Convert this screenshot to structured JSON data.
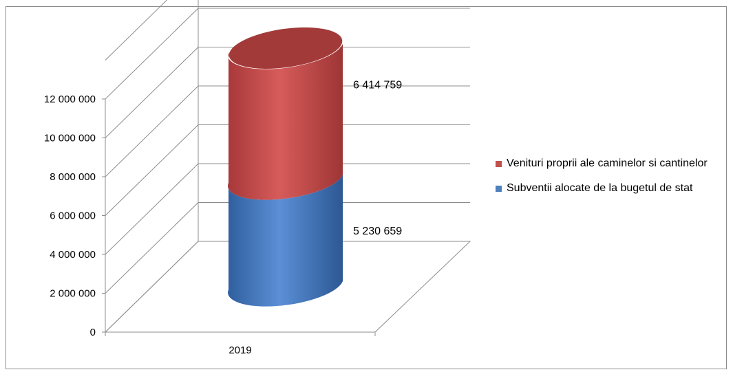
{
  "chart_data": {
    "type": "bar",
    "style": "3d-cylinder-stacked",
    "categories": [
      "2019"
    ],
    "series": [
      {
        "name": "Subventii alocate de la bugetul de stat",
        "values": [
          5230659
        ],
        "label": "5 230 659",
        "color": "#4f81bd"
      },
      {
        "name": "Venituri proprii ale caminelor si cantinelor",
        "values": [
          6414759
        ],
        "label": "6 414 759",
        "color": "#c0504d"
      }
    ],
    "ylim": [
      0,
      14000000
    ],
    "yticks": [
      0,
      2000000,
      4000000,
      6000000,
      8000000,
      10000000,
      12000000
    ],
    "ytick_labels": [
      "0",
      "2 000 000",
      "4 000 000",
      "6 000 000",
      "8 000 000",
      "10 000 000",
      "12 000 000"
    ],
    "grid": true,
    "legend": {
      "position": "right",
      "items": [
        {
          "label": "Venituri proprii ale caminelor si cantinelor",
          "color": "#c0504d"
        },
        {
          "label": "Subventii alocate de la bugetul de stat",
          "color": "#4f81bd"
        }
      ]
    }
  }
}
